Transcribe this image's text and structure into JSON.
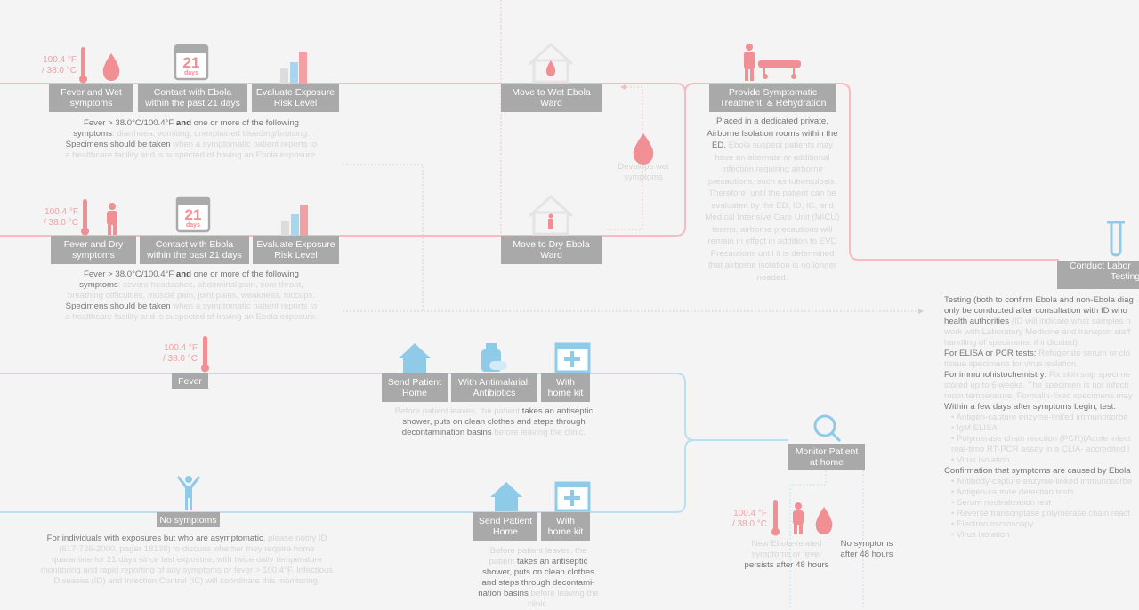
{
  "wet_pathway": {
    "temperature": [
      "100.4 °F",
      "/ 38.0 °C"
    ],
    "calendar": [
      "21",
      "days"
    ],
    "steps": [
      "Fever and Wet symptoms",
      "Contact with Ebola within the past 21 days",
      "Evaluate Exposure Risk Level"
    ],
    "note": [
      [
        "Fever > 38.0°C/100.4°F ",
        "and",
        " one or more of the following"
      ],
      [
        "symptoms",
        ": diarrhoea, vomiting, unexplained bleeding/bruising."
      ],
      [
        "Specimens should be taken",
        " when a symptomatic patient reports to"
      ],
      [
        "a healthcare facility and is suspected of having an Ebola exposure."
      ]
    ]
  },
  "dry_pathway": {
    "temperature": [
      "100.4 °F",
      "/ 38.0 °C"
    ],
    "calendar": [
      "21",
      "days"
    ],
    "steps": [
      "Fever and Dry symptoms",
      "Contact with Ebola within the past 21 days",
      "Evaluate Exposure Risk Level"
    ],
    "note": [
      [
        "Fever > 38.0°C/100.4°F ",
        "and",
        " one or more of the following"
      ],
      [
        "symptoms",
        ": severe headaches, abdominal pain, sore throat,"
      ],
      [
        "breathing difficulties, muscle pain, joint pains, weakness, hiccups."
      ],
      [
        "Specimens should be taken",
        " when a symptomatic patient reports to"
      ],
      [
        "a healthcare facility and is suspected of having an Ebola exposure."
      ]
    ]
  },
  "wet_ward": "Move to Wet Ebola Ward",
  "develops_wet": [
    "Develops wet",
    "symptoms"
  ],
  "dry_ward": "Move to Dry Ebola Ward",
  "treatment": {
    "label": "Provide Symptomatic Treatment, & Rehydration",
    "note": [
      [
        "Placed in a dedicated private,"
      ],
      [
        "Airborne Isolation rooms within the"
      ],
      [
        "ED.",
        " Ebola suspect patients may"
      ],
      [
        "have an alternate or additional"
      ],
      [
        "infection requiring airborne"
      ],
      [
        "precautions, such as tuberculosis."
      ],
      [
        "Therefore, until the patient can be"
      ],
      [
        "evaluated by the ED, ID, IC, and"
      ],
      [
        "Medical Intensive Care Unit (MICU)"
      ],
      [
        "teams, airborne precautions will"
      ],
      [
        "remain in effect in addition to EVD"
      ],
      [
        "Precautions until it is determined"
      ],
      [
        "that airborne isolation is no longer"
      ],
      [
        "needed."
      ]
    ]
  },
  "lab_testing": {
    "label": [
      "Conduct Labor",
      "Testing"
    ],
    "note": [
      [
        "Testing (both to confirm Ebola and non-Ebola diag"
      ],
      [
        "only be conducted after consultation with ID who"
      ],
      [
        "health authorities",
        " (ID will indicate what samples n"
      ],
      [
        "work with Laboratory Medicine and transport staff"
      ],
      [
        "handling of specimens, if indicated)."
      ],
      [
        "For ELISA or PCR tests: ",
        "Refrigerate serum or clo"
      ],
      [
        "tissue specimens for virus isolation."
      ],
      [
        "For immunohistochemistry: ",
        "Fix skin snip specime"
      ],
      [
        "stored up to 6 weeks. The specimen is not infecti"
      ],
      [
        "room temperature. Formalin-fixed specimens may"
      ],
      [
        "Within a few days after symptoms begin, test:"
      ],
      [
        "• Antigen-capture enzyme-linked immunosorbe"
      ],
      [
        "• IgM ELISA"
      ],
      [
        "• Polymerase chain reaction (PCR)(Acute infect"
      ],
      [
        "real-time RT-PCR assay in a CLIA- accredited l"
      ],
      [
        "• Virus isolation"
      ],
      [
        "Confirmation that symptoms are caused by Ebola"
      ],
      [
        "• Antibody-capture enzyme-linked immunosorbe"
      ],
      [
        "• Antigen-capture detection tests"
      ],
      [
        "• Serum neutralization test"
      ],
      [
        "• Reverse transcriptase polymerase chain react"
      ],
      [
        "• Electron microscopy"
      ],
      [
        "• Virus isolation"
      ]
    ]
  },
  "fever_pathway": {
    "temperature": [
      "100.4 °F",
      "/ 38.0 °C"
    ],
    "label": "Fever",
    "steps": [
      "Send Patient Home",
      "With Antimalarial, Antibiotics",
      "With home kit"
    ],
    "note": [
      [
        "Before patient leaves, the patient ",
        "takes an antiseptic"
      ],
      [
        "shower, puts on clean clothes and steps through"
      ],
      [
        "decontamination basins",
        " before leaving the clinic."
      ]
    ]
  },
  "monitor": {
    "label": "Monitor Patient at home",
    "temperature": [
      "100.4 °F",
      "/ 38.0 °C"
    ],
    "symptoms_outcome": [
      "New Ebola-related",
      "symptoms or fever",
      "persists after 48 hours"
    ],
    "no_symptoms_outcome": [
      "No symptoms",
      "after 48 hours"
    ]
  },
  "no_symptoms_pathway": {
    "label": "No symptoms",
    "note": [
      [
        "For individuals with exposures but who are asymptomatic",
        ", please notify ID"
      ],
      [
        "(617-726-2000, pager 18138) to discuss whether they require home"
      ],
      [
        "quarantine for 21 days since last exposure, with twice daily temperature"
      ],
      [
        "monitoring and rapid reporting of any symptoms or fever > 100.4°F. Infectious"
      ],
      [
        "Diseases (ID) and Infection Control (IC) will coordinate this monitoring."
      ]
    ],
    "steps": [
      "Send Patient Home",
      "With home kit"
    ],
    "steps_note": [
      [
        "Before patient leaves, the"
      ],
      [
        "patient ",
        "takes an antiseptic"
      ],
      [
        "shower, puts on clean clothes"
      ],
      [
        "and steps through decontami-"
      ],
      [
        "nation basins",
        " before leaving the"
      ],
      [
        "clinic."
      ]
    ]
  }
}
